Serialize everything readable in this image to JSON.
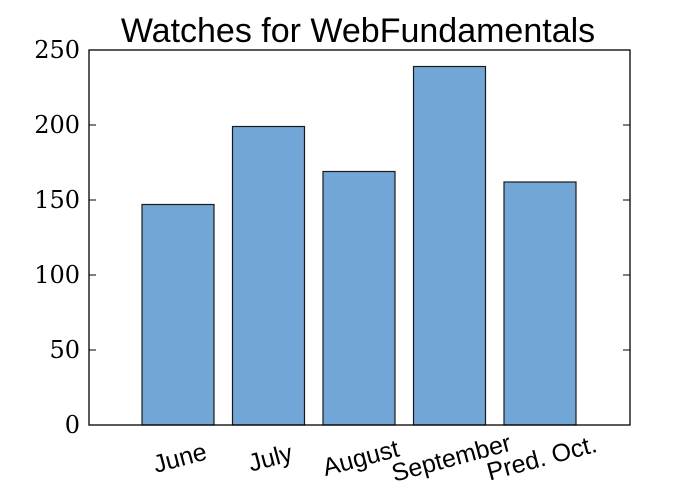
{
  "chart_data": {
    "type": "bar",
    "title": "Watches for WebFundamentals",
    "xlabel": "",
    "ylabel": "",
    "categories": [
      "June",
      "July",
      "August",
      "September",
      "Pred. Oct."
    ],
    "values": [
      147,
      199,
      169,
      239,
      162
    ],
    "ylim": [
      0,
      250
    ],
    "yticks": [
      0,
      50,
      100,
      150,
      200,
      250
    ],
    "bar_color": "#72a6d6",
    "grid": false,
    "legend": "none"
  }
}
